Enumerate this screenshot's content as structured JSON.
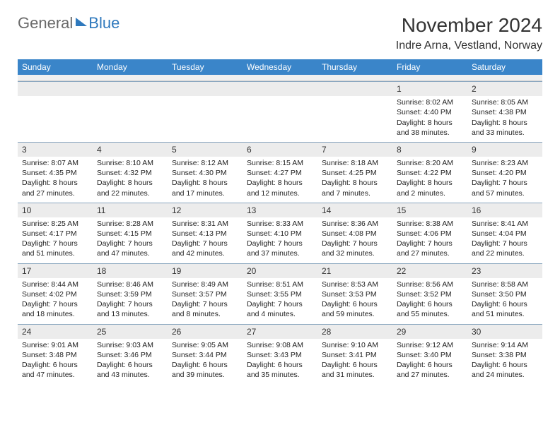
{
  "logo": {
    "general": "General",
    "blue": "Blue"
  },
  "title": "November 2024",
  "location": "Indre Arna, Vestland, Norway",
  "days_of_week": [
    "Sunday",
    "Monday",
    "Tuesday",
    "Wednesday",
    "Thursday",
    "Friday",
    "Saturday"
  ],
  "colors": {
    "header_bar": "#3a85c9",
    "daynum_bg": "#ececec",
    "daynum_border": "#8aa6bf",
    "logo_gray": "#6a6a6a",
    "logo_blue": "#2f79bd"
  },
  "weeks": [
    [
      {
        "n": "",
        "sunrise": "",
        "sunset": "",
        "daylight": ""
      },
      {
        "n": "",
        "sunrise": "",
        "sunset": "",
        "daylight": ""
      },
      {
        "n": "",
        "sunrise": "",
        "sunset": "",
        "daylight": ""
      },
      {
        "n": "",
        "sunrise": "",
        "sunset": "",
        "daylight": ""
      },
      {
        "n": "",
        "sunrise": "",
        "sunset": "",
        "daylight": ""
      },
      {
        "n": "1",
        "sunrise": "Sunrise: 8:02 AM",
        "sunset": "Sunset: 4:40 PM",
        "daylight": "Daylight: 8 hours and 38 minutes."
      },
      {
        "n": "2",
        "sunrise": "Sunrise: 8:05 AM",
        "sunset": "Sunset: 4:38 PM",
        "daylight": "Daylight: 8 hours and 33 minutes."
      }
    ],
    [
      {
        "n": "3",
        "sunrise": "Sunrise: 8:07 AM",
        "sunset": "Sunset: 4:35 PM",
        "daylight": "Daylight: 8 hours and 27 minutes."
      },
      {
        "n": "4",
        "sunrise": "Sunrise: 8:10 AM",
        "sunset": "Sunset: 4:32 PM",
        "daylight": "Daylight: 8 hours and 22 minutes."
      },
      {
        "n": "5",
        "sunrise": "Sunrise: 8:12 AM",
        "sunset": "Sunset: 4:30 PM",
        "daylight": "Daylight: 8 hours and 17 minutes."
      },
      {
        "n": "6",
        "sunrise": "Sunrise: 8:15 AM",
        "sunset": "Sunset: 4:27 PM",
        "daylight": "Daylight: 8 hours and 12 minutes."
      },
      {
        "n": "7",
        "sunrise": "Sunrise: 8:18 AM",
        "sunset": "Sunset: 4:25 PM",
        "daylight": "Daylight: 8 hours and 7 minutes."
      },
      {
        "n": "8",
        "sunrise": "Sunrise: 8:20 AM",
        "sunset": "Sunset: 4:22 PM",
        "daylight": "Daylight: 8 hours and 2 minutes."
      },
      {
        "n": "9",
        "sunrise": "Sunrise: 8:23 AM",
        "sunset": "Sunset: 4:20 PM",
        "daylight": "Daylight: 7 hours and 57 minutes."
      }
    ],
    [
      {
        "n": "10",
        "sunrise": "Sunrise: 8:25 AM",
        "sunset": "Sunset: 4:17 PM",
        "daylight": "Daylight: 7 hours and 51 minutes."
      },
      {
        "n": "11",
        "sunrise": "Sunrise: 8:28 AM",
        "sunset": "Sunset: 4:15 PM",
        "daylight": "Daylight: 7 hours and 47 minutes."
      },
      {
        "n": "12",
        "sunrise": "Sunrise: 8:31 AM",
        "sunset": "Sunset: 4:13 PM",
        "daylight": "Daylight: 7 hours and 42 minutes."
      },
      {
        "n": "13",
        "sunrise": "Sunrise: 8:33 AM",
        "sunset": "Sunset: 4:10 PM",
        "daylight": "Daylight: 7 hours and 37 minutes."
      },
      {
        "n": "14",
        "sunrise": "Sunrise: 8:36 AM",
        "sunset": "Sunset: 4:08 PM",
        "daylight": "Daylight: 7 hours and 32 minutes."
      },
      {
        "n": "15",
        "sunrise": "Sunrise: 8:38 AM",
        "sunset": "Sunset: 4:06 PM",
        "daylight": "Daylight: 7 hours and 27 minutes."
      },
      {
        "n": "16",
        "sunrise": "Sunrise: 8:41 AM",
        "sunset": "Sunset: 4:04 PM",
        "daylight": "Daylight: 7 hours and 22 minutes."
      }
    ],
    [
      {
        "n": "17",
        "sunrise": "Sunrise: 8:44 AM",
        "sunset": "Sunset: 4:02 PM",
        "daylight": "Daylight: 7 hours and 18 minutes."
      },
      {
        "n": "18",
        "sunrise": "Sunrise: 8:46 AM",
        "sunset": "Sunset: 3:59 PM",
        "daylight": "Daylight: 7 hours and 13 minutes."
      },
      {
        "n": "19",
        "sunrise": "Sunrise: 8:49 AM",
        "sunset": "Sunset: 3:57 PM",
        "daylight": "Daylight: 7 hours and 8 minutes."
      },
      {
        "n": "20",
        "sunrise": "Sunrise: 8:51 AM",
        "sunset": "Sunset: 3:55 PM",
        "daylight": "Daylight: 7 hours and 4 minutes."
      },
      {
        "n": "21",
        "sunrise": "Sunrise: 8:53 AM",
        "sunset": "Sunset: 3:53 PM",
        "daylight": "Daylight: 6 hours and 59 minutes."
      },
      {
        "n": "22",
        "sunrise": "Sunrise: 8:56 AM",
        "sunset": "Sunset: 3:52 PM",
        "daylight": "Daylight: 6 hours and 55 minutes."
      },
      {
        "n": "23",
        "sunrise": "Sunrise: 8:58 AM",
        "sunset": "Sunset: 3:50 PM",
        "daylight": "Daylight: 6 hours and 51 minutes."
      }
    ],
    [
      {
        "n": "24",
        "sunrise": "Sunrise: 9:01 AM",
        "sunset": "Sunset: 3:48 PM",
        "daylight": "Daylight: 6 hours and 47 minutes."
      },
      {
        "n": "25",
        "sunrise": "Sunrise: 9:03 AM",
        "sunset": "Sunset: 3:46 PM",
        "daylight": "Daylight: 6 hours and 43 minutes."
      },
      {
        "n": "26",
        "sunrise": "Sunrise: 9:05 AM",
        "sunset": "Sunset: 3:44 PM",
        "daylight": "Daylight: 6 hours and 39 minutes."
      },
      {
        "n": "27",
        "sunrise": "Sunrise: 9:08 AM",
        "sunset": "Sunset: 3:43 PM",
        "daylight": "Daylight: 6 hours and 35 minutes."
      },
      {
        "n": "28",
        "sunrise": "Sunrise: 9:10 AM",
        "sunset": "Sunset: 3:41 PM",
        "daylight": "Daylight: 6 hours and 31 minutes."
      },
      {
        "n": "29",
        "sunrise": "Sunrise: 9:12 AM",
        "sunset": "Sunset: 3:40 PM",
        "daylight": "Daylight: 6 hours and 27 minutes."
      },
      {
        "n": "30",
        "sunrise": "Sunrise: 9:14 AM",
        "sunset": "Sunset: 3:38 PM",
        "daylight": "Daylight: 6 hours and 24 minutes."
      }
    ]
  ]
}
